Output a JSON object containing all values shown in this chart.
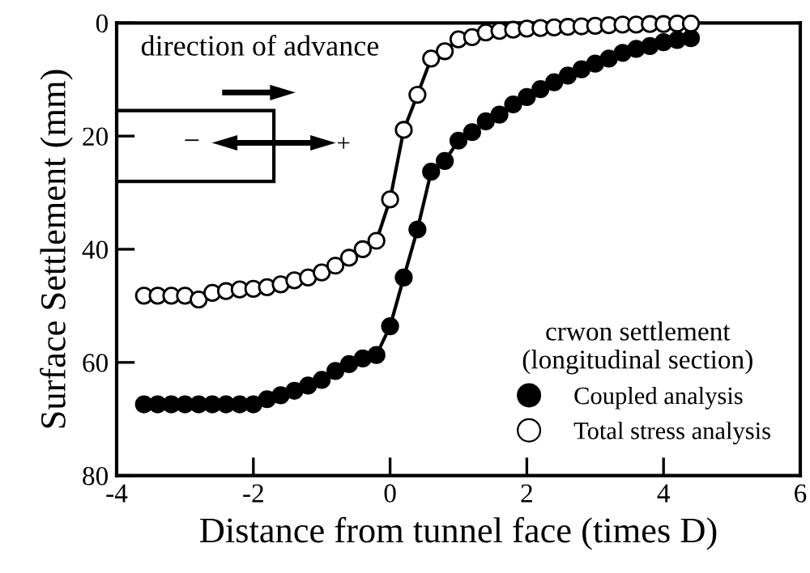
{
  "chart_data": {
    "type": "line",
    "xlabel": "Distance from tunnel face (times D)",
    "ylabel": "Surface Settlement (mm)",
    "legend_title": "crwon settlement\n(longitudinal section)",
    "annotations": [
      "direction of advance",
      "−",
      "+"
    ],
    "x": [
      -3.6,
      -3.4,
      -3.2,
      -3.0,
      -2.8,
      -2.6,
      -2.4,
      -2.2,
      -2.0,
      -1.8,
      -1.6,
      -1.4,
      -1.2,
      -1.0,
      -0.8,
      -0.6,
      -0.4,
      -0.2,
      0,
      0.2,
      0.4,
      0.6,
      0.8,
      1.0,
      1.2,
      1.4,
      1.6,
      1.8,
      2.0,
      2.2,
      2.4,
      2.6,
      2.8,
      3.0,
      3.2,
      3.4,
      3.6,
      3.8,
      4.0,
      4.2,
      4.4
    ],
    "series": [
      {
        "name": "Coupled analysis",
        "color": "#000000",
        "values": [
          67.4,
          67.4,
          67.4,
          67.4,
          67.4,
          67.4,
          67.4,
          67.4,
          67.4,
          66.5,
          65.8,
          65.0,
          64.1,
          63.1,
          61.5,
          60.3,
          59.3,
          58.7,
          53.6,
          45.0,
          36.5,
          26.3,
          24.4,
          20.8,
          19.3,
          17.4,
          16.2,
          14.4,
          13.1,
          11.7,
          10.5,
          9.3,
          8.2,
          7.2,
          6.3,
          5.3,
          4.6,
          4.1,
          3.4,
          3.0,
          2.7
        ]
      },
      {
        "name": "Total stress analysis",
        "color": "#ffffff",
        "values": [
          48.2,
          48.2,
          48.2,
          48.2,
          48.9,
          47.7,
          47.4,
          47.1,
          47.0,
          46.7,
          46.2,
          45.5,
          45.0,
          44.1,
          42.9,
          41.5,
          40.0,
          38.5,
          31.2,
          18.9,
          12.7,
          6.3,
          5.0,
          2.9,
          2.5,
          1.7,
          1.4,
          1.2,
          1.0,
          0.9,
          0.8,
          0.7,
          0.6,
          0.5,
          0.4,
          0.3,
          0.3,
          0.2,
          0.2,
          0.1,
          0.1
        ]
      }
    ],
    "xlim": [
      -4,
      6
    ],
    "xticks": [
      -4,
      -2,
      0,
      2,
      4,
      6
    ],
    "ylim": [
      80,
      0
    ],
    "yticks": [
      0,
      20,
      40,
      60,
      80
    ],
    "grid": false,
    "legend": "bottom right",
    "marker": "circle",
    "line_style": "solid"
  }
}
